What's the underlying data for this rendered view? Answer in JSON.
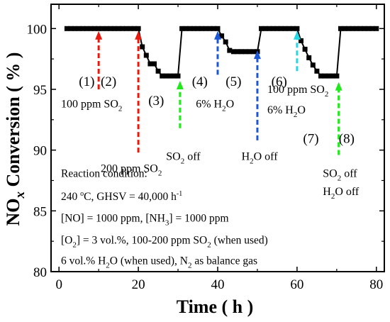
{
  "chart_data": {
    "type": "line",
    "xlabel": "Time ( h )",
    "ylabel": "NOx Conversion ( % )",
    "xlim": [
      -2,
      82
    ],
    "ylim": [
      80,
      102
    ],
    "x_ticks": [
      "0",
      "20",
      "40",
      "60",
      "80"
    ],
    "y_ticks": [
      "80",
      "85",
      "90",
      "95",
      "100"
    ],
    "grid": false,
    "series": [
      {
        "x": [
          2,
          3,
          4,
          5,
          6,
          7,
          8,
          9,
          10,
          11,
          12,
          13,
          14,
          15,
          16,
          17,
          18,
          19,
          20,
          21,
          22,
          23,
          24,
          25,
          26,
          27,
          28,
          29,
          30,
          31,
          32,
          33,
          34,
          35,
          36,
          37,
          38,
          39,
          40,
          41,
          42,
          43,
          44,
          45,
          46,
          47,
          48,
          49,
          50,
          51,
          52,
          53,
          54,
          55,
          56,
          57,
          58,
          59,
          60,
          61,
          62,
          63,
          64,
          65,
          66,
          67,
          68,
          69,
          70,
          71,
          72,
          73,
          74,
          75,
          76,
          77,
          78,
          79,
          80
        ],
        "y": [
          100,
          100,
          100,
          100,
          100,
          100,
          100,
          100,
          100,
          100,
          100,
          100,
          100,
          100,
          100,
          100,
          100,
          100,
          100,
          98.5,
          97.8,
          97.1,
          97.1,
          96.5,
          96.1,
          96.1,
          96.1,
          96.1,
          96.1,
          100,
          100,
          100,
          100,
          100,
          100,
          100,
          100,
          100,
          100,
          99.4,
          98.9,
          98.2,
          98.1,
          98.1,
          98.1,
          98.1,
          98.1,
          98.1,
          98.1,
          100,
          100,
          100,
          100,
          100,
          100,
          100,
          100,
          100,
          100,
          99,
          98.3,
          97.6,
          97,
          96.5,
          96.1,
          96.1,
          96.1,
          96.1,
          96.1,
          100,
          100,
          100,
          100,
          100,
          100,
          100,
          100,
          100,
          100
        ]
      }
    ],
    "events": [
      {
        "x": 10,
        "y_from": 95,
        "y_to": 99.8,
        "color": "#e8190c"
      },
      {
        "x": 20,
        "y_from": 89.8,
        "y_to": 99.8,
        "color": "#e8190c"
      },
      {
        "x": 30.5,
        "y_from": 91.8,
        "y_to": 95.7,
        "color": "#21e81b"
      },
      {
        "x": 40,
        "y_from": 96.2,
        "y_to": 99.8,
        "color": "#1a57d6"
      },
      {
        "x": 50,
        "y_from": 90.8,
        "y_to": 98.2,
        "color": "#1a57d6"
      },
      {
        "x": 60,
        "y_from": 96.5,
        "y_to": 99.8,
        "color": "#23d8e5"
      },
      {
        "x": 70.5,
        "y_from": 89.6,
        "y_to": 95.6,
        "color": "#21e81b"
      }
    ],
    "annotations": [
      {
        "text": "100 ppm SO2",
        "main": "100 ppm SO",
        "sub": "2",
        "sup": "",
        "rest": "",
        "x": 0.5,
        "y": 93.5
      },
      {
        "text": "200 ppm SO2",
        "main": "200 ppm SO",
        "sub": "2",
        "sup": "",
        "rest": "",
        "x": 10.5,
        "y": 88.2
      },
      {
        "text": "SO2 off",
        "main": "SO",
        "sub": "2",
        "sup": "",
        "rest": " off",
        "x": 27,
        "y": 89.2
      },
      {
        "text": "6% H2O",
        "main": "6% H",
        "sub": "2",
        "sup": "",
        "rest": "O",
        "x": 34.5,
        "y": 93.5
      },
      {
        "text": "H2O off",
        "main": "H",
        "sub": "2",
        "sup": "",
        "rest": "O off",
        "x": 46,
        "y": 89.2
      },
      {
        "text": "100 ppm SO2",
        "main": "100 ppm SO",
        "sub": "2",
        "sup": "",
        "rest": "",
        "x": 52.5,
        "y": 94.7
      },
      {
        "text": "6%  H2O",
        "main": "6%  H",
        "sub": "2",
        "sup": "",
        "rest": "O",
        "x": 52.5,
        "y": 93
      },
      {
        "text": "SO2 off",
        "main": "SO",
        "sub": "2",
        "sup": "",
        "rest": " off",
        "x": 66.5,
        "y": 87.8
      },
      {
        "text": "H2O off",
        "main": "H",
        "sub": "2",
        "sup": "",
        "rest": "O off",
        "x": 66.5,
        "y": 86.3
      }
    ],
    "stages": [
      {
        "label": "(1)",
        "x": 7,
        "y": 95.3
      },
      {
        "label": "(2)",
        "x": 12.5,
        "y": 95.3
      },
      {
        "label": "(3)",
        "x": 24.5,
        "y": 93.7
      },
      {
        "label": "(4)",
        "x": 35.5,
        "y": 95.3
      },
      {
        "label": "(5)",
        "x": 44,
        "y": 95.3
      },
      {
        "label": "(6)",
        "x": 55.5,
        "y": 95.3
      },
      {
        "label": "(7)",
        "x": 63.5,
        "y": 90.6
      },
      {
        "label": "(8)",
        "x": 72.5,
        "y": 90.6
      }
    ],
    "condition_lines": [
      {
        "text": "Reaction condition:",
        "main": "Reaction condition:",
        "sub": "",
        "sup": "",
        "rest": "",
        "x": 0.5,
        "y": 87.8
      },
      {
        "text": "240 oC, GHSV = 40,000 h-1",
        "main": "240 ",
        "sub": "",
        "sup": "o",
        "rest": "C, GHSV = 40,000 h",
        "sup2": "-1",
        "x": 0.5,
        "y": 85.9
      },
      {
        "text": "[NO] = 1000 ppm, [NH3] = 1000 ppm",
        "main": "[NO] = 1000 ppm, [NH",
        "sub": "3",
        "sup": "",
        "rest": "] = 1000 ppm",
        "x": 0.5,
        "y": 84.1
      },
      {
        "text": "[O2] = 3 vol.%, 100-200 ppm SO2 (when used)",
        "main": "[O",
        "sub": "2",
        "sup": "",
        "rest": "] = 3 vol.%, 100-200 ppm SO",
        "sub2": "2",
        "rest2": " (when used)",
        "x": 0.5,
        "y": 82.3
      },
      {
        "text": "6 vol.% H2O  (when used), N2 as balance gas",
        "main": "6 vol.% H",
        "sub": "2",
        "sup": "",
        "rest": "O  (when used), N",
        "sub2": "2",
        "rest2": " as balance gas",
        "x": 0.5,
        "y": 80.6
      }
    ]
  }
}
